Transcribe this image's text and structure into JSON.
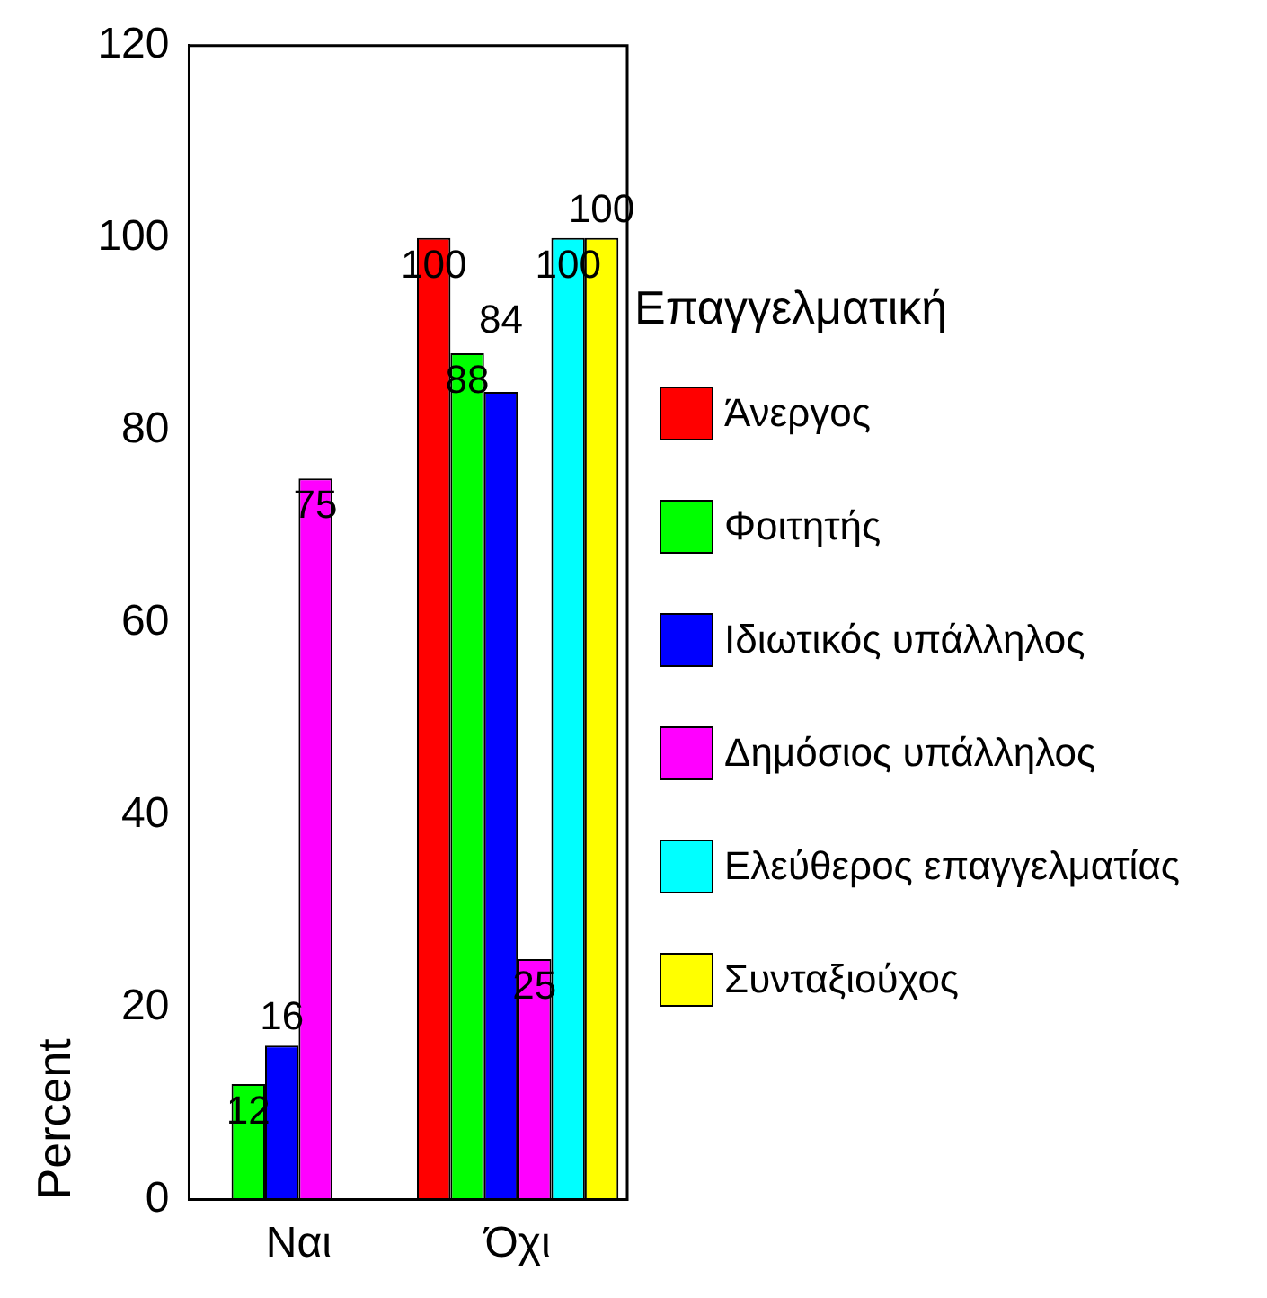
{
  "chart_data": {
    "type": "bar",
    "ylabel": "Percent",
    "legend_title": "Επαγγελματική",
    "categories": [
      "Ναι",
      "Όχι"
    ],
    "series": [
      {
        "name": "Άνεργος",
        "color": "#ff0000",
        "values": [
          null,
          100
        ]
      },
      {
        "name": "Φοιτητής",
        "color": "#00ff00",
        "values": [
          12,
          88
        ]
      },
      {
        "name": "Ιδιωτικός υπάλληλος",
        "color": "#0000ff",
        "values": [
          16,
          84
        ]
      },
      {
        "name": "Δημόσιος υπάλληλος",
        "color": "#ff00ff",
        "values": [
          75,
          25
        ]
      },
      {
        "name": "Ελεύθερος επαγγελματίας",
        "color": "#00ffff",
        "values": [
          null,
          100
        ]
      },
      {
        "name": "Συνταξιούχος",
        "color": "#ffff00",
        "values": [
          null,
          100
        ]
      }
    ],
    "ylim": [
      0,
      120
    ],
    "yticks": [
      0,
      20,
      40,
      60,
      80,
      100,
      120
    ],
    "grid": false,
    "legend": "right",
    "data_labels": true
  }
}
